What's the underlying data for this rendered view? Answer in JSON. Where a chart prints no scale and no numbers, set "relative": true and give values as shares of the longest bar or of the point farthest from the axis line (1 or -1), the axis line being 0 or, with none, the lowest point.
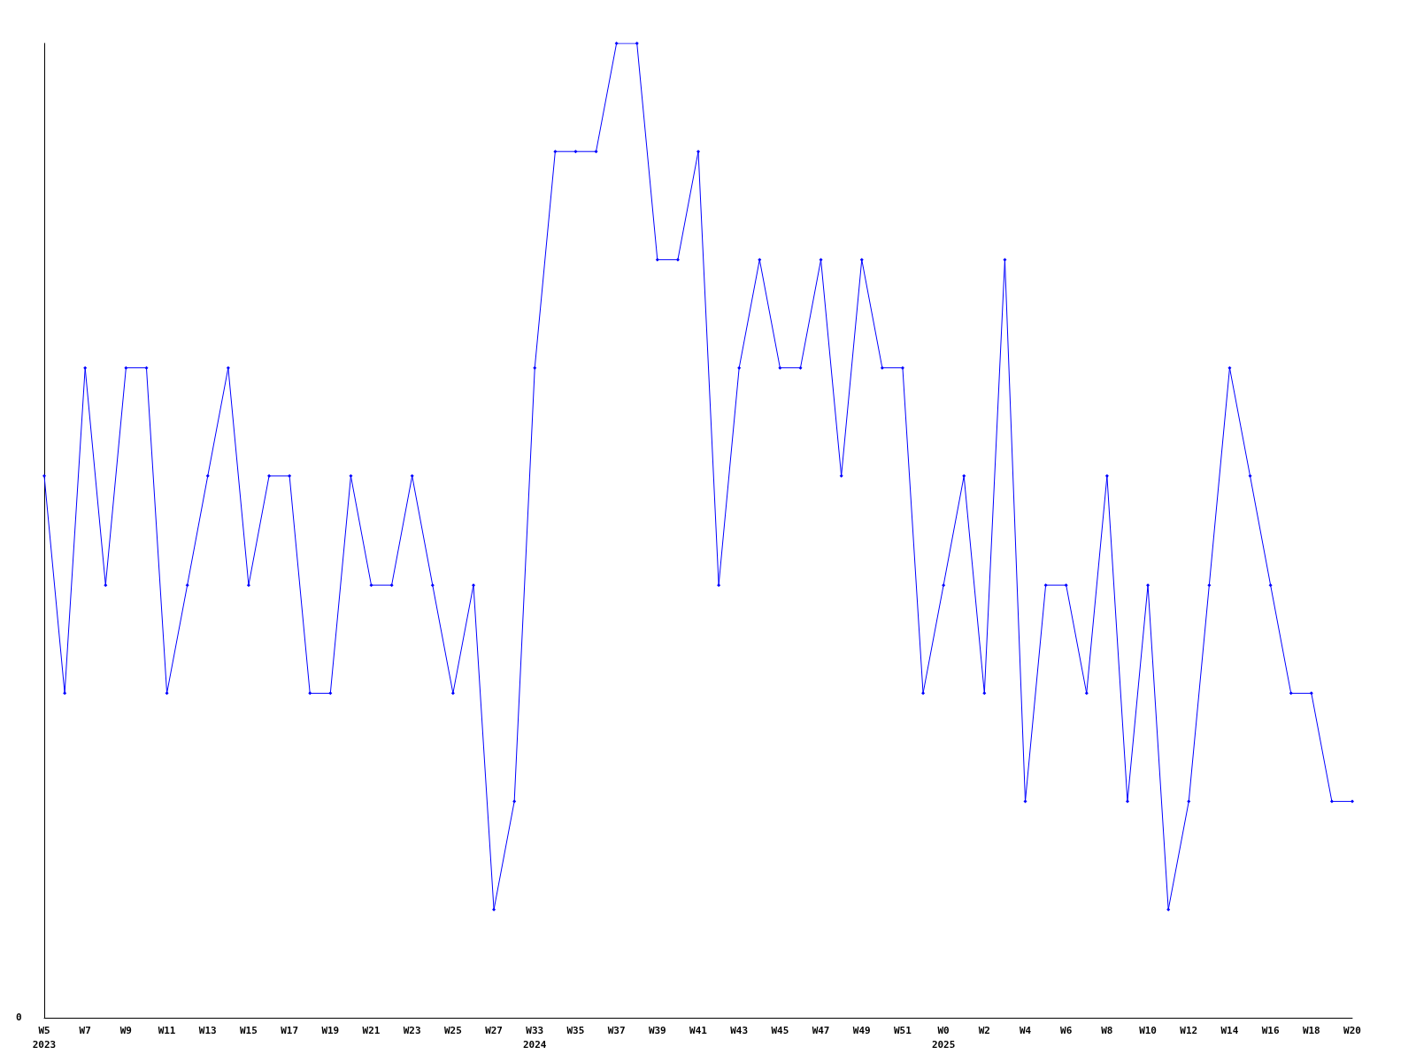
{
  "chart_data": {
    "type": "line",
    "relative": true,
    "color": "#0000ff",
    "marker": "diamond",
    "grid": false,
    "annotations": [
      "0"
    ],
    "categories": [
      "W5\n2023",
      null,
      "W7",
      null,
      "W9",
      null,
      "W11",
      null,
      "W13",
      null,
      "W15",
      null,
      "W17",
      null,
      "W19",
      null,
      "W21",
      null,
      "W23",
      null,
      "W25",
      null,
      "W27",
      null,
      "W33\n2024",
      null,
      "W35",
      null,
      "W37",
      null,
      "W39",
      null,
      "W41",
      null,
      "W43",
      null,
      "W45",
      null,
      "W47",
      null,
      "W49",
      null,
      "W51",
      null,
      "W0\n2025",
      null,
      "W2",
      null,
      "W4",
      null,
      "W6",
      null,
      "W8",
      null,
      "W10",
      null,
      "W12",
      null,
      "W14",
      null,
      "W16",
      null,
      "W18",
      null,
      "W20"
    ],
    "values": [
      0.556,
      0.333,
      0.667,
      0.444,
      0.667,
      0.667,
      0.333,
      0.444,
      0.556,
      0.667,
      0.444,
      0.556,
      0.556,
      0.333,
      0.333,
      0.556,
      0.444,
      0.444,
      0.556,
      0.444,
      0.333,
      0.444,
      0.111,
      0.222,
      0.667,
      0.889,
      0.889,
      0.889,
      1,
      1,
      0.778,
      0.778,
      0.889,
      0.444,
      0.667,
      0.778,
      0.667,
      0.667,
      0.778,
      0.556,
      0.778,
      0.667,
      0.667,
      0.333,
      0.444,
      0.556,
      0.333,
      0.778,
      0.222,
      0.444,
      0.444,
      0.333,
      0.556,
      0.222,
      0.444,
      0.111,
      0.222,
      0.444,
      0.667,
      0.556,
      0.444,
      0.333,
      0.333,
      0.222,
      0.222
    ]
  }
}
